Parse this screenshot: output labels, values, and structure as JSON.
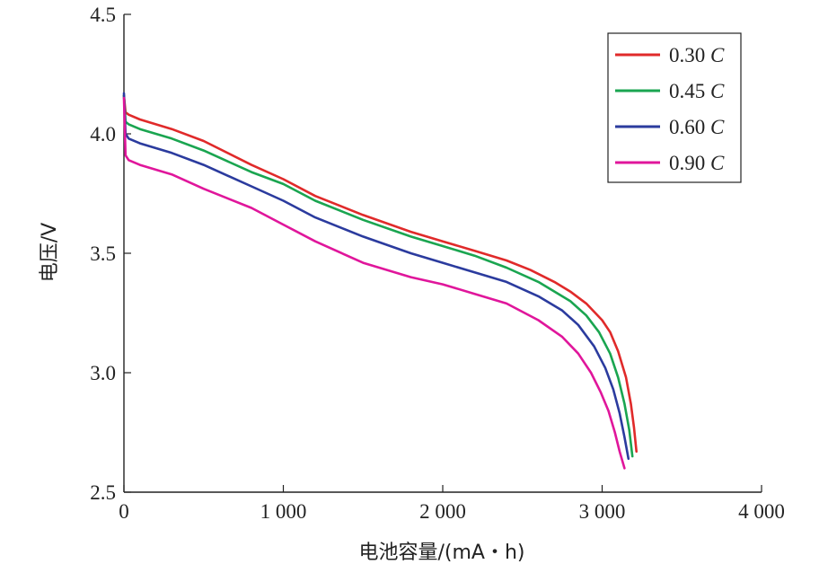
{
  "chart_data": {
    "type": "line",
    "xlabel": "电池容量/(mA・h)",
    "ylabel": "电压/V",
    "xlim": [
      0,
      4000
    ],
    "ylim": [
      2.5,
      4.5
    ],
    "x_ticks": [
      0,
      1000,
      2000,
      3000,
      4000
    ],
    "x_tick_labels": [
      "0",
      "1 000",
      "2 000",
      "3 000",
      "4 000"
    ],
    "y_ticks": [
      2.5,
      3.0,
      3.5,
      4.0,
      4.5
    ],
    "y_tick_labels": [
      "2.5",
      "3.0",
      "3.5",
      "4.0",
      "4.5"
    ],
    "grid": false,
    "legend_position": "top-right",
    "series": [
      {
        "name": "0.30",
        "unit": "C",
        "color": "#e02a2a",
        "x": [
          0,
          10,
          30,
          100,
          300,
          500,
          800,
          1000,
          1200,
          1500,
          1800,
          2000,
          2200,
          2400,
          2550,
          2700,
          2800,
          2900,
          3000,
          3050,
          3100,
          3150,
          3180,
          3200,
          3215
        ],
        "y": [
          4.16,
          4.09,
          4.08,
          4.06,
          4.02,
          3.97,
          3.87,
          3.81,
          3.74,
          3.66,
          3.59,
          3.55,
          3.51,
          3.47,
          3.43,
          3.38,
          3.34,
          3.29,
          3.22,
          3.17,
          3.09,
          2.98,
          2.87,
          2.77,
          2.67
        ]
      },
      {
        "name": "0.45",
        "unit": "C",
        "color": "#1aa550",
        "x": [
          0,
          10,
          30,
          100,
          300,
          500,
          800,
          1000,
          1200,
          1500,
          1800,
          2000,
          2200,
          2400,
          2600,
          2800,
          2900,
          2980,
          3050,
          3100,
          3140,
          3170,
          3190
        ],
        "y": [
          4.16,
          4.05,
          4.04,
          4.02,
          3.98,
          3.93,
          3.84,
          3.79,
          3.72,
          3.64,
          3.57,
          3.53,
          3.49,
          3.44,
          3.38,
          3.3,
          3.24,
          3.17,
          3.08,
          2.98,
          2.87,
          2.76,
          2.65
        ]
      },
      {
        "name": "0.60",
        "unit": "C",
        "color": "#2b3b9e",
        "x": [
          0,
          10,
          30,
          100,
          300,
          500,
          800,
          1000,
          1200,
          1500,
          1800,
          2000,
          2200,
          2400,
          2600,
          2750,
          2850,
          2950,
          3020,
          3070,
          3110,
          3140,
          3165
        ],
        "y": [
          4.17,
          4.0,
          3.98,
          3.96,
          3.92,
          3.87,
          3.78,
          3.72,
          3.65,
          3.57,
          3.5,
          3.46,
          3.42,
          3.38,
          3.32,
          3.26,
          3.2,
          3.11,
          3.02,
          2.93,
          2.83,
          2.73,
          2.64
        ]
      },
      {
        "name": "0.90",
        "unit": "C",
        "color": "#e0169b",
        "x": [
          0,
          10,
          30,
          100,
          300,
          500,
          800,
          1000,
          1200,
          1500,
          1800,
          2000,
          2200,
          2400,
          2600,
          2750,
          2850,
          2930,
          2990,
          3040,
          3080,
          3110,
          3140
        ],
        "y": [
          4.15,
          3.91,
          3.89,
          3.87,
          3.83,
          3.77,
          3.69,
          3.62,
          3.55,
          3.46,
          3.4,
          3.37,
          3.33,
          3.29,
          3.22,
          3.15,
          3.08,
          3.0,
          2.92,
          2.84,
          2.75,
          2.67,
          2.6
        ]
      }
    ]
  }
}
